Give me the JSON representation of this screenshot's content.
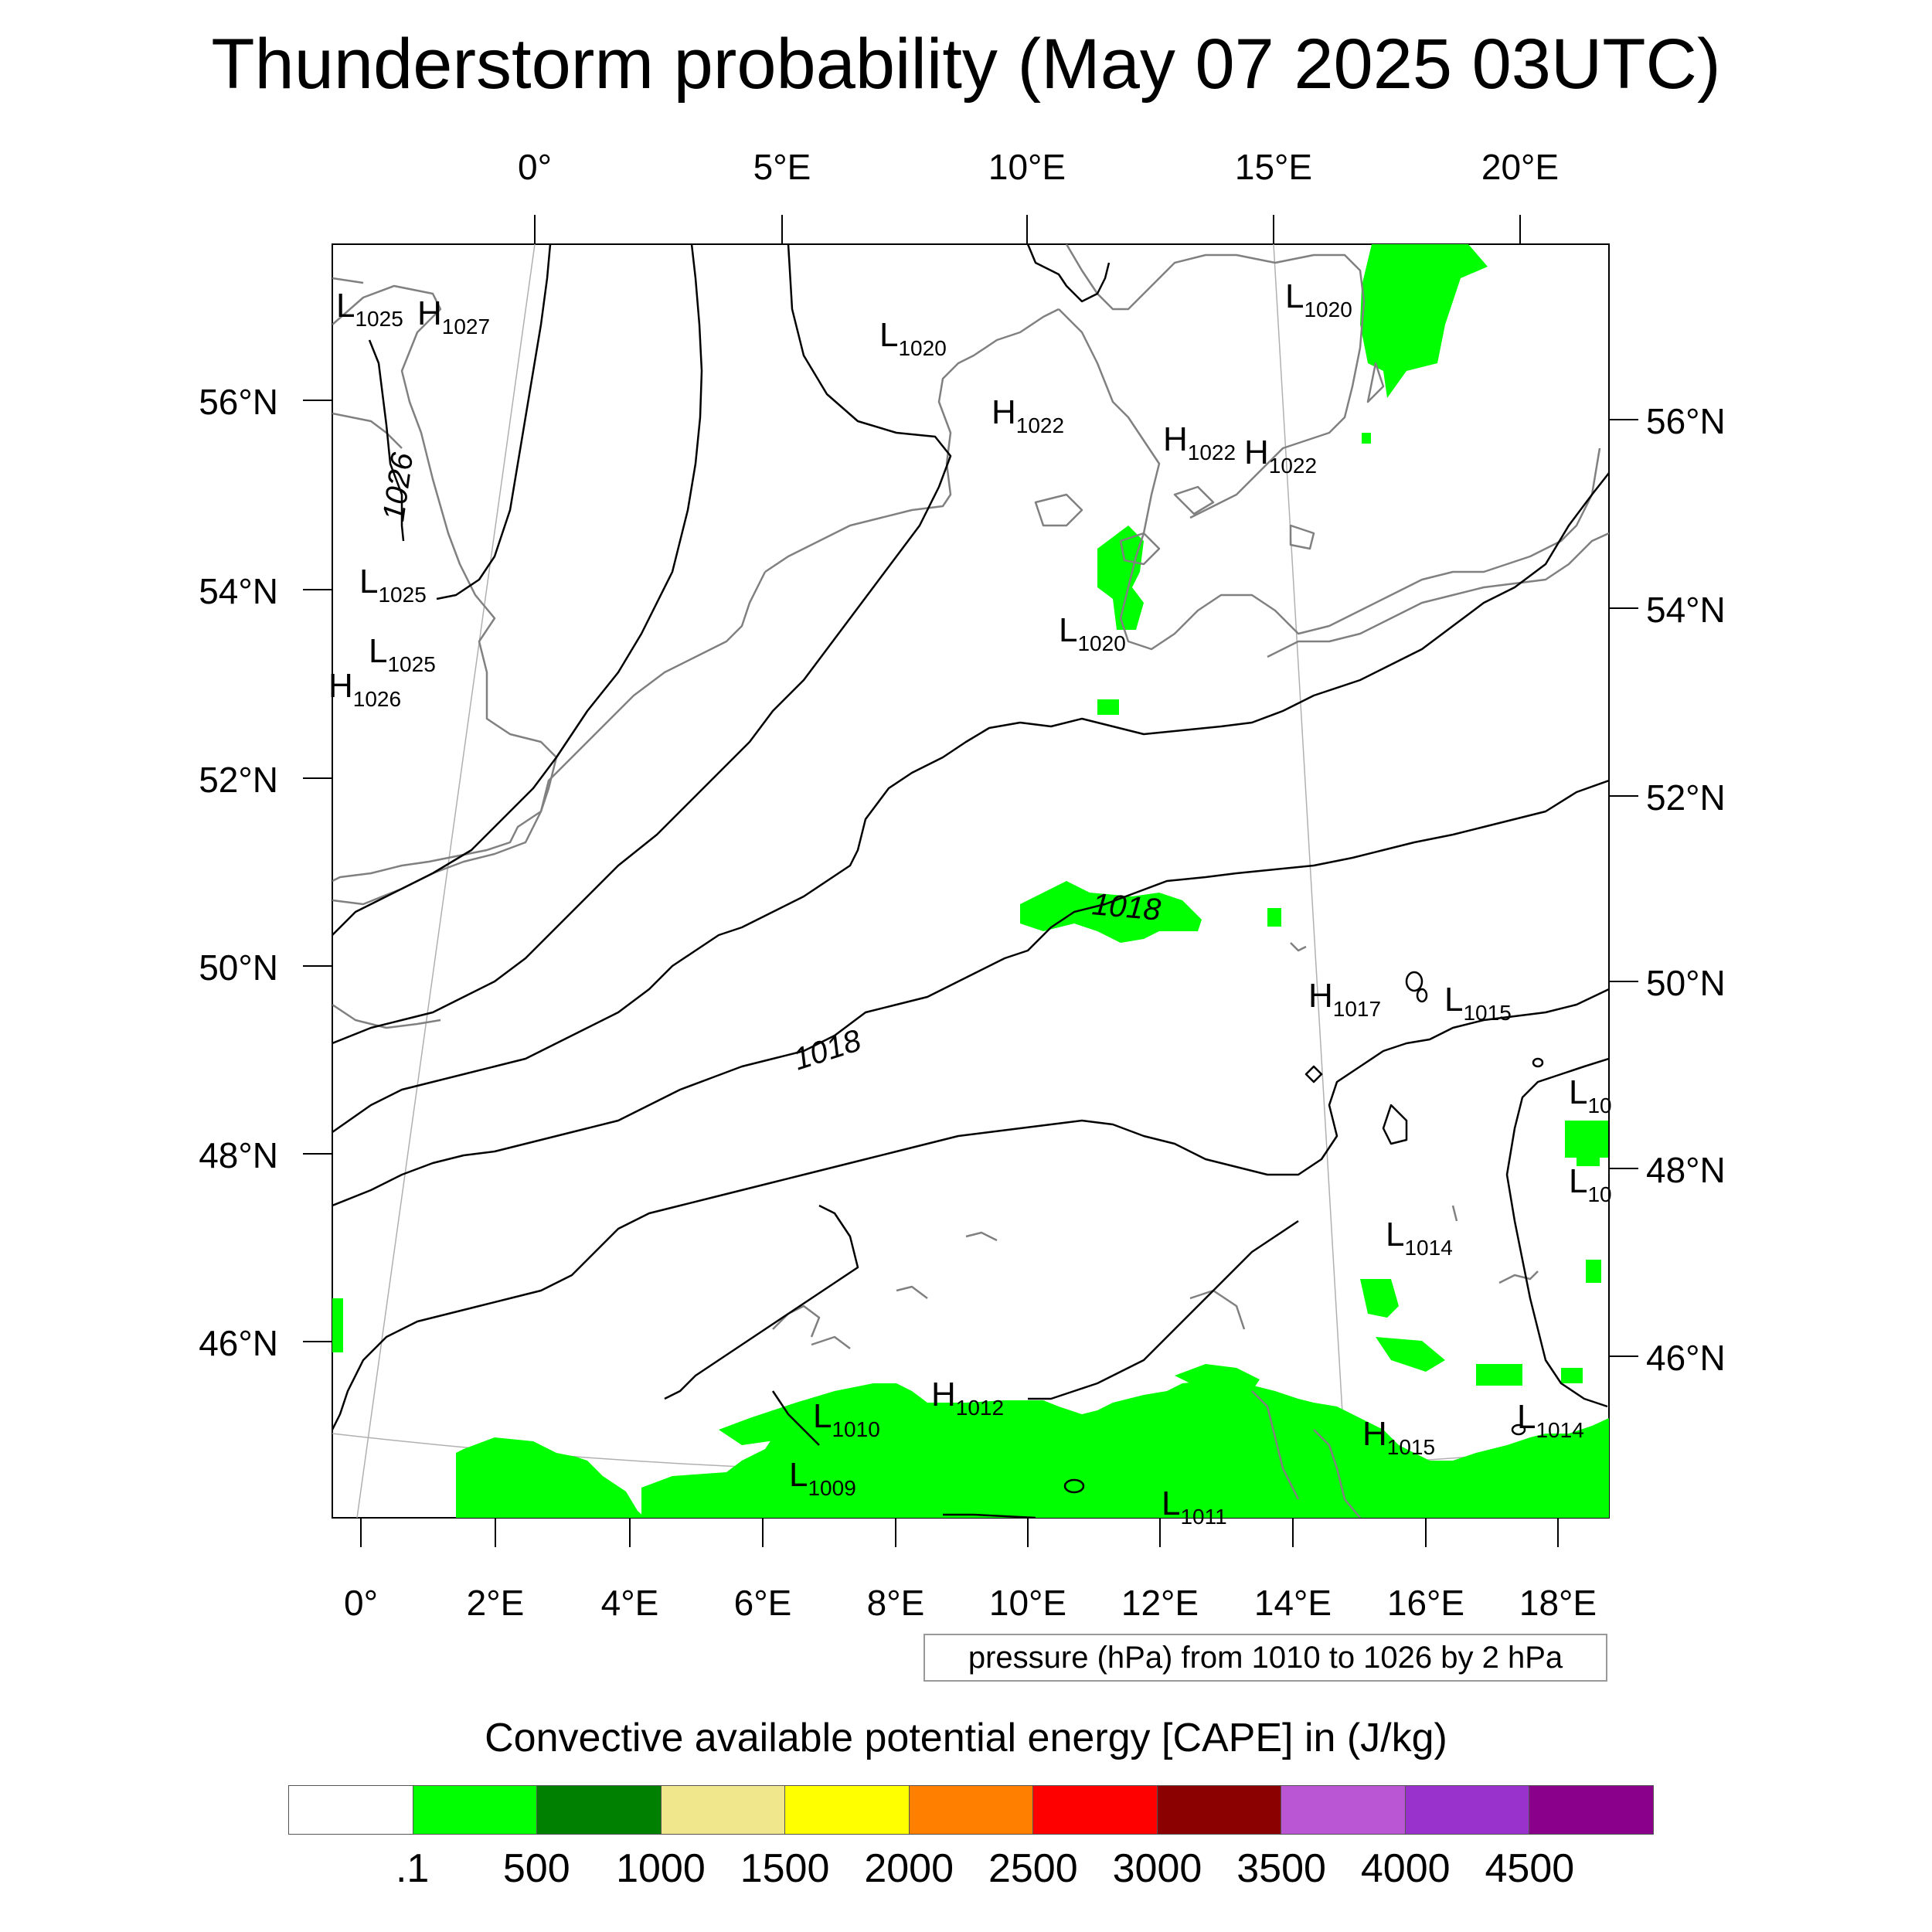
{
  "title": "Thunderstorm probability (May 07 2025 03UTC)",
  "axes": {
    "top_lon_ticks": [
      "0°",
      "5°E",
      "10°E",
      "15°E",
      "20°E"
    ],
    "bottom_lon_ticks": [
      "0°",
      "2°E",
      "4°E",
      "6°E",
      "8°E",
      "10°E",
      "12°E",
      "14°E",
      "16°E",
      "18°E"
    ],
    "left_lat_ticks": [
      "56°N",
      "54°N",
      "52°N",
      "50°N",
      "48°N",
      "46°N"
    ],
    "right_lat_ticks": [
      "56°N",
      "54°N",
      "52°N",
      "50°N",
      "48°N",
      "46°N"
    ]
  },
  "pressure_centers": [
    {
      "letter": "L",
      "value": "1025"
    },
    {
      "letter": "H",
      "value": "1027"
    },
    {
      "letter": "L",
      "value": "1020"
    },
    {
      "letter": "L",
      "value": "1020"
    },
    {
      "letter": "H",
      "value": "1022"
    },
    {
      "letter": "H",
      "value": "1022"
    },
    {
      "letter": "H",
      "value": "1022"
    },
    {
      "letter": "L",
      "value": "1025"
    },
    {
      "letter": "L",
      "value": "1025"
    },
    {
      "letter": "H",
      "value": "1026"
    },
    {
      "letter": "L",
      "value": "1020"
    },
    {
      "letter": "H",
      "value": "1017"
    },
    {
      "letter": "L",
      "value": "1015"
    },
    {
      "letter": "L",
      "value": "1014"
    },
    {
      "letter": "H",
      "value": "1012"
    },
    {
      "letter": "L",
      "value": "1010"
    },
    {
      "letter": "L",
      "value": "1009"
    },
    {
      "letter": "L",
      "value": "1011"
    },
    {
      "letter": "H",
      "value": "1015"
    },
    {
      "letter": "L",
      "value": "1014"
    },
    {
      "letter": "L",
      "value": "10"
    },
    {
      "letter": "L",
      "value": "10"
    }
  ],
  "isobar_labels": [
    "1026",
    "1018",
    "1018"
  ],
  "pressure_note": "pressure (hPa) from 1010 to 1026 by 2 hPa",
  "cape_title": "Convective available potential energy [CAPE] in (J/kg)",
  "legend": {
    "colors": [
      "#ffffff",
      "#00ff00",
      "#008000",
      "#f0e68c",
      "#ffff00",
      "#ff8000",
      "#ff0000",
      "#8b0000",
      "#ba55d3",
      "#9932cc",
      "#8b008b"
    ],
    "labels": [
      ".1",
      "500",
      "1000",
      "1500",
      "2000",
      "2500",
      "3000",
      "3500",
      "4000",
      "4500"
    ]
  },
  "colors": {
    "isobar": "#000000",
    "coast": "#808080",
    "cape_low": "#00ff00"
  }
}
